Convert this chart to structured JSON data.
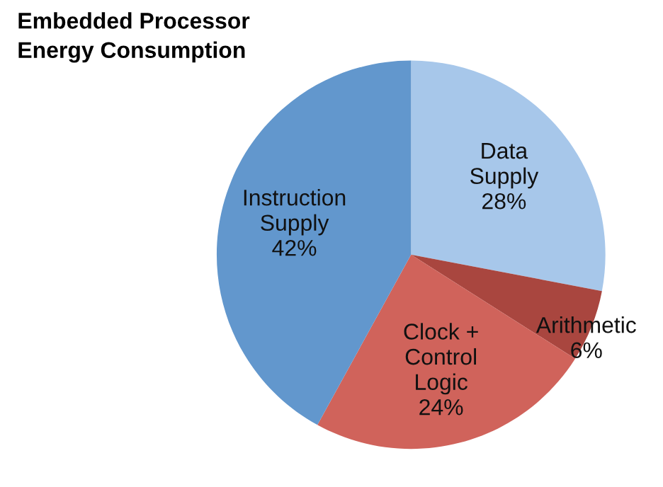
{
  "chart_data": {
    "type": "pie",
    "title": "Embedded Processor\nEnergy Consumption",
    "categories": [
      "Data Supply",
      "Arithmetic",
      "Clock + Control Logic",
      "Instruction Supply"
    ],
    "values": [
      28,
      6,
      24,
      42
    ],
    "value_labels": [
      "28%",
      "6%",
      "24%",
      "42%"
    ],
    "colors": [
      "#a7c7ea",
      "#a9463f",
      "#d0635b",
      "#6297cd"
    ],
    "legend": false
  }
}
